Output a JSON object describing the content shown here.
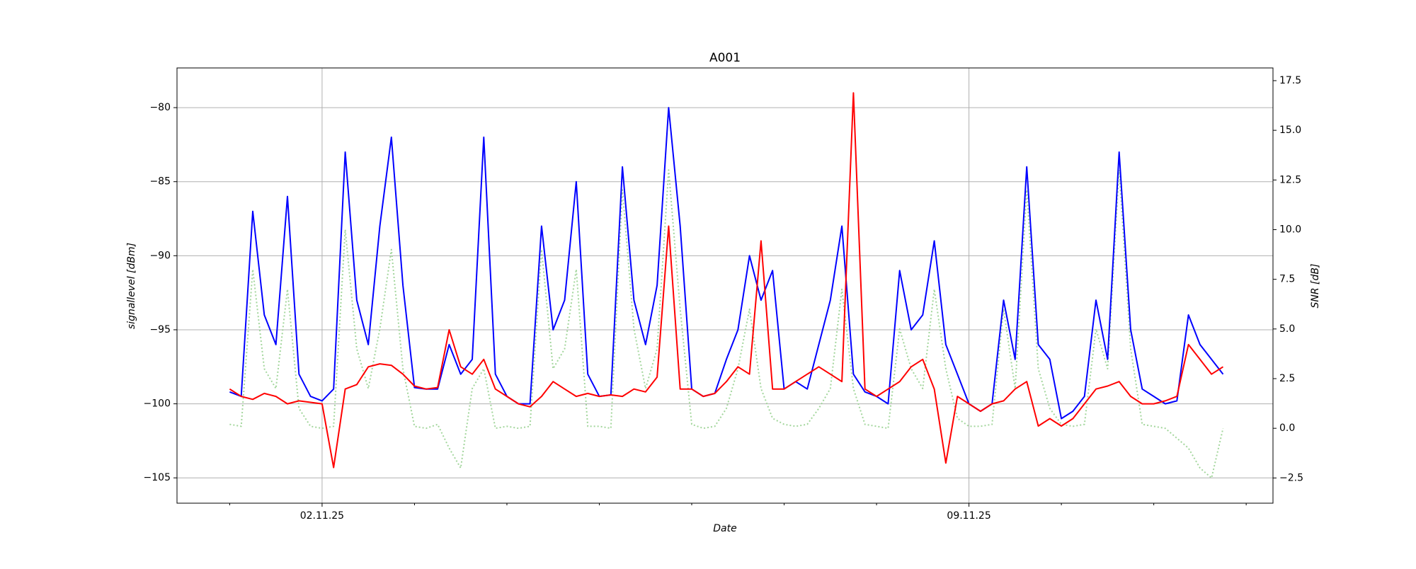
{
  "chart_data": {
    "type": "line",
    "title": "A001",
    "xlabel": "Date",
    "ylabel": "signallevel [dBm]",
    "y2label": "SNR [dB]",
    "x": [
      1,
      1.125,
      1.25,
      1.375,
      1.5,
      1.625,
      1.75,
      1.875,
      2,
      2.125,
      2.25,
      2.375,
      2.5,
      2.625,
      2.75,
      2.875,
      3,
      3.125,
      3.25,
      3.375,
      3.5,
      3.625,
      3.75,
      3.875,
      4,
      4.125,
      4.25,
      4.375,
      4.5,
      4.625,
      4.75,
      4.875,
      5,
      5.125,
      5.25,
      5.375,
      5.5,
      5.625,
      5.75,
      5.875,
      6,
      6.125,
      6.25,
      6.375,
      6.5,
      6.625,
      6.75,
      6.875,
      7,
      7.125,
      7.25,
      7.375,
      7.5,
      7.625,
      7.75,
      7.875,
      8,
      8.125,
      8.25,
      8.375,
      8.5,
      8.625,
      8.75,
      8.875,
      9,
      9.125,
      9.25,
      9.375,
      9.5,
      9.625,
      9.75,
      9.875,
      10,
      10.125,
      10.25,
      10.375,
      10.5,
      10.625,
      10.75,
      10.875,
      11,
      11.125,
      11.25,
      11.375,
      11.5,
      11.625,
      11.75
    ],
    "xlim": [
      0.43,
      12.29
    ],
    "xticks": [
      {
        "value": 2,
        "label": "02.11.25"
      },
      {
        "value": 9,
        "label": "09.11.25"
      }
    ],
    "xminor_ticks": [
      1,
      3,
      4,
      5,
      6,
      7,
      8,
      10,
      11,
      12
    ],
    "ylim": [
      -106.71,
      -77.32
    ],
    "yticks": [
      {
        "value": -105,
        "label": "−105"
      },
      {
        "value": -100,
        "label": "−100"
      },
      {
        "value": -95,
        "label": "−95"
      },
      {
        "value": -90,
        "label": "−90"
      },
      {
        "value": -85,
        "label": "−85"
      },
      {
        "value": -80,
        "label": "−80"
      }
    ],
    "y2lim": [
      -3.77,
      18.14
    ],
    "y2ticks": [
      {
        "value": -2.5,
        "label": "−2.5"
      },
      {
        "value": 0,
        "label": "0.0"
      },
      2.5,
      {
        "value": 5,
        "label": "5.0"
      },
      7.5,
      {
        "value": 10,
        "label": "10.0"
      },
      12.5,
      {
        "value": 15,
        "label": "15.0"
      },
      17.5
    ],
    "grid": true,
    "series": [
      {
        "color": "#a3d69c",
        "linestyle": "dotted",
        "axis": "y2",
        "values": [
          0.2,
          0.1,
          8,
          3,
          2,
          7,
          1,
          0.1,
          0,
          0.1,
          10,
          4,
          2,
          5,
          9,
          3,
          0.1,
          0,
          0.2,
          -1,
          -2,
          2,
          3,
          0,
          0.1,
          0,
          0.1,
          9,
          3,
          4,
          8,
          0.1,
          0.1,
          0,
          12,
          5,
          2,
          4,
          13,
          6,
          0.2,
          0,
          0.1,
          1,
          3,
          6,
          2,
          0.5,
          0.2,
          0.1,
          0.2,
          1,
          2,
          7,
          2,
          0.2,
          0.1,
          0,
          5,
          3,
          2,
          7,
          3,
          0.5,
          0.1,
          0.1,
          0.2,
          6,
          2,
          12,
          3,
          1,
          0.2,
          0.1,
          0.2,
          5,
          3,
          13,
          4,
          0.2,
          0.1,
          0,
          -0.5,
          -1,
          -2,
          -2.5,
          0
        ]
      },
      {
        "color": "#0000ff",
        "linestyle": "solid",
        "values": [
          -99.2,
          -99.5,
          -87,
          -94,
          -96,
          -86,
          -98,
          -99.5,
          -99.8,
          -99,
          -83,
          -93,
          -96,
          -88,
          -82,
          -92,
          -98.9,
          -99,
          -99,
          -96,
          -98,
          -97,
          -82,
          -98,
          -99.5,
          -100,
          -100,
          -88,
          -95,
          -93,
          -85,
          -98,
          -99.5,
          -99.4,
          -84,
          -93,
          -96,
          -92,
          -80,
          -88,
          -99,
          -99.5,
          -99.3,
          -97,
          -95,
          -90,
          -93,
          -91,
          -99,
          -98.5,
          -99,
          -96,
          -93,
          -88,
          -98,
          -99.2,
          -99.5,
          -100,
          -91,
          -95,
          -94,
          -89,
          -96,
          -98,
          -100,
          -100.5,
          -100,
          -93,
          -97,
          -84,
          -96,
          -97,
          -101,
          -100.5,
          -99.5,
          -93,
          -97,
          -83,
          -95,
          -99,
          -99.5,
          -100,
          -99.8,
          -94,
          -96,
          -97,
          -98
        ]
      },
      {
        "color": "#ff0000",
        "linestyle": "solid",
        "values": [
          -99,
          -99.5,
          -99.7,
          -99.3,
          -99.5,
          -100,
          -99.8,
          -99.9,
          -100,
          -104.3,
          -99,
          -98.7,
          -97.5,
          -97.3,
          -97.4,
          -98,
          -98.8,
          -99,
          -98.9,
          -95,
          -97.5,
          -98,
          -97,
          -99,
          -99.5,
          -100,
          -100.2,
          -99.5,
          -98.5,
          -99,
          -99.5,
          -99.3,
          -99.5,
          -99.4,
          -99.5,
          -99,
          -99.2,
          -98.2,
          -88,
          -99,
          -99,
          -99.5,
          -99.3,
          -98.5,
          -97.5,
          -98,
          -89,
          -99,
          -99,
          -98.5,
          -98,
          -97.5,
          -98,
          -98.5,
          -79,
          -99,
          -99.5,
          -99,
          -98.5,
          -97.5,
          -97,
          -99,
          -104,
          -99.5,
          -100,
          -100.5,
          -100,
          -99.8,
          -99,
          -98.5,
          -101.5,
          -101,
          -101.5,
          -101,
          -100,
          -99,
          -98.8,
          -98.5,
          -99.5,
          -100,
          -100,
          -99.8,
          -99.5,
          -96,
          -97,
          -98,
          -97.5
        ]
      }
    ]
  }
}
